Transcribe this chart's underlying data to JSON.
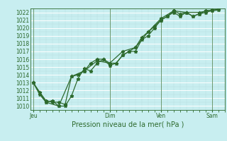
{
  "title": "",
  "xlabel": "Pression niveau de la mer( hPa )",
  "bg_color": "#c8eef0",
  "line_color": "#2d6a2d",
  "grid_color": "#ffffff",
  "grid_color2": "#b8dede",
  "tick_label_color": "#2d6a2d",
  "day_labels": [
    "Jeu",
    "Dim",
    "Ven",
    "Sam"
  ],
  "day_positions": [
    0,
    6,
    10,
    14
  ],
  "ylim": [
    1009.5,
    1022.5
  ],
  "yticks": [
    1010,
    1011,
    1012,
    1013,
    1014,
    1015,
    1016,
    1017,
    1018,
    1019,
    1020,
    1021,
    1022
  ],
  "series1_x": [
    0,
    0.5,
    1,
    1.5,
    2,
    2.5,
    3,
    3.5,
    4,
    4.5,
    5,
    5.5,
    6,
    6.5,
    7,
    7.5,
    8,
    8.5,
    9,
    9.5,
    10,
    10.5,
    11,
    11.5,
    12,
    12.5,
    13,
    13.5,
    14,
    14.5
  ],
  "series1_y": [
    1013.0,
    1011.5,
    1010.5,
    1010.7,
    1010.0,
    1010.0,
    1011.3,
    1013.5,
    1014.8,
    1014.5,
    1015.5,
    1016.0,
    1015.5,
    1015.5,
    1016.5,
    1017.0,
    1017.0,
    1018.5,
    1019.0,
    1020.0,
    1021.0,
    1021.5,
    1022.2,
    1021.8,
    1022.0,
    1021.5,
    1021.8,
    1022.0,
    1022.2,
    1022.3
  ],
  "series2_x": [
    0,
    0.5,
    1,
    1.5,
    2,
    2.5,
    3,
    3.5,
    4,
    4.5,
    5,
    5.5,
    6,
    6.5,
    7,
    7.5,
    8,
    8.5,
    9,
    9.5,
    10,
    10.5,
    11,
    11.5,
    12,
    12.5,
    13,
    13.5,
    14,
    14.5
  ],
  "series2_y": [
    1013.0,
    1011.8,
    1010.7,
    1010.5,
    1010.5,
    1010.2,
    1013.8,
    1014.0,
    1014.5,
    1015.5,
    1016.0,
    1016.0,
    1015.2,
    1015.5,
    1016.5,
    1017.0,
    1017.5,
    1018.8,
    1019.5,
    1020.2,
    1021.0,
    1021.5,
    1022.0,
    1021.5,
    1022.0,
    1021.5,
    1021.8,
    1022.2,
    1022.3,
    1022.4
  ],
  "series3_x": [
    0,
    1,
    2,
    3,
    4,
    5,
    6,
    7,
    8,
    9,
    10,
    11,
    12,
    13,
    14
  ],
  "series3_y": [
    1013.0,
    1010.5,
    1010.0,
    1013.8,
    1014.5,
    1015.8,
    1015.5,
    1017.0,
    1017.5,
    1019.5,
    1021.2,
    1022.2,
    1022.0,
    1022.0,
    1022.3
  ],
  "marker": "*",
  "markersize": 3.5,
  "linewidth": 0.9,
  "xlim": [
    -0.2,
    15.0
  ]
}
